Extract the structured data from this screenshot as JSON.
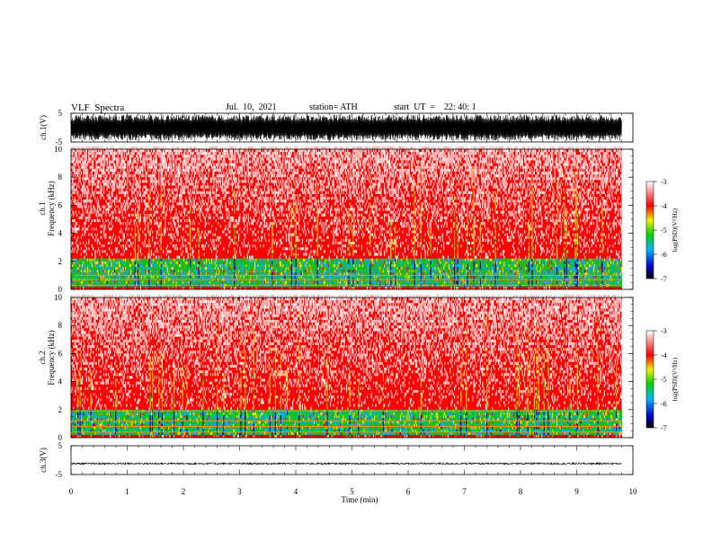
{
  "header": {
    "title": "VLF  Spectra",
    "date": "Jul.  10,  2021",
    "station": "station= ATH",
    "start_ut": "start  UT  =    22: 40: 1"
  },
  "chart_data": [
    {
      "type": "line",
      "panel": "ch.1 waveform",
      "ylabel": "ch.1(V)",
      "ylim": [
        -5,
        5
      ],
      "yticks": [
        "5",
        "-5"
      ],
      "xlim": [
        0,
        10
      ],
      "data_end_min": 9.8,
      "x_unit": "min",
      "amplitude_envelope_V": [
        -4.5,
        4.5
      ],
      "color": "#000000"
    },
    {
      "type": "heatmap",
      "panel": "ch.1 spectrogram",
      "ylabel": "ch.1\nFrequency  (kHz)",
      "ylim": [
        0,
        10
      ],
      "yticks": [
        "0",
        "2",
        "4",
        "6",
        "8",
        "10"
      ],
      "xlim": [
        0,
        10
      ],
      "data_end_min": 9.8,
      "colorbar": {
        "label": "log(PSD)(V²/Hz)",
        "range": [
          -7,
          -3
        ],
        "ticks": [
          "-3",
          "-4",
          "-5",
          "-6",
          "-7"
        ]
      },
      "dominant_level": -4,
      "enhanced_band_kHz": [
        0.2,
        2.1
      ],
      "lines_kHz": [
        0.3,
        0.7,
        1.0
      ]
    },
    {
      "type": "heatmap",
      "panel": "ch.2 spectrogram",
      "ylabel": "ch.2\nFrequency  (kHz)",
      "ylim": [
        0,
        10
      ],
      "yticks": [
        "0",
        "2",
        "4",
        "6",
        "8",
        "10"
      ],
      "xlim": [
        0,
        10
      ],
      "data_end_min": 9.8,
      "colorbar": {
        "label": "log(PSD)(V²/Hz)",
        "range": [
          -7,
          -3
        ],
        "ticks": [
          "-3",
          "-4",
          "-5",
          "-6",
          "-7"
        ]
      },
      "dominant_level": -4,
      "enhanced_band_kHz": [
        0.2,
        1.8
      ],
      "lines_kHz": [
        0.4,
        0.8,
        1.2,
        1.9
      ]
    },
    {
      "type": "line",
      "panel": "ch.3 waveform",
      "ylabel": "ch.3(V)",
      "ylim": [
        -5,
        5
      ],
      "yticks": [
        "5",
        "-5"
      ],
      "xlim": [
        0,
        10
      ],
      "data_end_min": 9.8,
      "x_unit": "min",
      "mean_V": -1.2,
      "amplitude_envelope_V": [
        -1.5,
        -0.9
      ],
      "color": "#000000"
    }
  ],
  "xaxis": {
    "label": "Time  (min)",
    "ticks": [
      "0",
      "1",
      "2",
      "3",
      "4",
      "5",
      "6",
      "7",
      "8",
      "9",
      "10"
    ]
  }
}
